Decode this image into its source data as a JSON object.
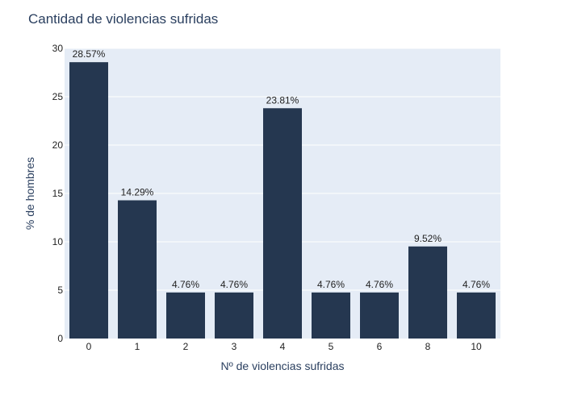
{
  "chart_data": {
    "type": "bar",
    "title": "Cantidad de violencias sufridas",
    "xlabel": "Nº de violencias sufridas",
    "ylabel": "% de hombres",
    "categories": [
      "0",
      "1",
      "2",
      "3",
      "4",
      "5",
      "6",
      "8",
      "10"
    ],
    "values": [
      28.57,
      14.29,
      4.76,
      4.76,
      23.81,
      4.76,
      4.76,
      9.52,
      4.76
    ],
    "data_labels": [
      "28.57%",
      "14.29%",
      "4.76%",
      "4.76%",
      "23.81%",
      "4.76%",
      "4.76%",
      "9.52%",
      "4.76%"
    ],
    "ylim": [
      0,
      30
    ],
    "yticks": [
      0,
      5,
      10,
      15,
      20,
      25,
      30
    ],
    "grid": true,
    "colors": {
      "bar": "#253750",
      "plot_bg": "#e5ecf6",
      "grid": "#ffffff",
      "text": "#2a3f5f"
    }
  }
}
